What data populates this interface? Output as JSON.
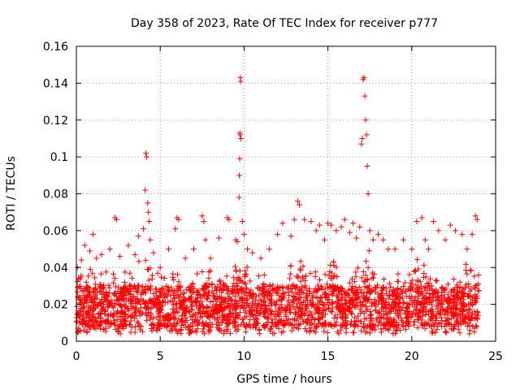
{
  "chart_data": {
    "type": "scatter",
    "title": "Day 358 of 2023, Rate Of TEC Index for receiver p777",
    "xlabel": "GPS time / hours",
    "ylabel": "ROTI / TECUs",
    "xlim": [
      0,
      25
    ],
    "ylim": [
      0,
      0.16
    ],
    "xticks": [
      0,
      5,
      10,
      15,
      20,
      25
    ],
    "xtick_labels": [
      "0",
      "5",
      "10",
      "15",
      "20",
      "25"
    ],
    "yticks": [
      0,
      0.02,
      0.04,
      0.06,
      0.08,
      0.1,
      0.12,
      0.14,
      0.16
    ],
    "ytick_labels": [
      "0",
      "0.02",
      "0.04",
      "0.06",
      "0.08",
      "0.1",
      "0.12",
      "0.14",
      "0.16"
    ],
    "grid": true,
    "marker": "+",
    "color": "#ff0000",
    "series": [
      {
        "name": "ROTI",
        "description_of_bulk": "dense band of points across 0-24 h mostly between 0.005 and 0.035 TECU/s",
        "x": [
          0.3,
          0.5,
          0.8,
          1.0,
          1.2,
          1.5,
          2.0,
          2.3,
          2.4,
          2.6,
          3.1,
          3.5,
          3.7,
          4.0,
          4.1,
          4.15,
          4.2,
          4.25,
          4.3,
          4.35,
          4.4,
          4.6,
          5.0,
          5.5,
          5.9,
          6.0,
          6.1,
          6.5,
          7.0,
          7.5,
          7.6,
          7.7,
          8.0,
          8.5,
          9.0,
          9.1,
          9.5,
          9.6,
          9.7,
          9.72,
          9.74,
          9.75,
          9.76,
          9.78,
          9.8,
          9.82,
          9.9,
          10.0,
          10.2,
          10.5,
          11.0,
          11.5,
          12.0,
          12.3,
          12.8,
          13.0,
          13.2,
          13.3,
          13.6,
          14.0,
          14.3,
          14.5,
          14.8,
          15.0,
          15.2,
          15.5,
          15.8,
          16.0,
          16.3,
          16.5,
          16.7,
          16.9,
          17.0,
          17.05,
          17.1,
          17.15,
          17.2,
          17.25,
          17.3,
          17.35,
          17.4,
          17.5,
          17.7,
          18.0,
          18.3,
          18.6,
          19.0,
          19.5,
          20.0,
          20.3,
          20.6,
          20.8,
          21.0,
          21.3,
          21.6,
          22.0,
          22.3,
          22.6,
          23.0,
          23.3,
          23.6,
          23.8,
          23.9
        ],
        "y": [
          0.044,
          0.052,
          0.049,
          0.058,
          0.045,
          0.047,
          0.05,
          0.067,
          0.066,
          0.046,
          0.052,
          0.047,
          0.057,
          0.061,
          0.082,
          0.102,
          0.1,
          0.075,
          0.07,
          0.065,
          0.055,
          0.048,
          0.04,
          0.05,
          0.061,
          0.067,
          0.066,
          0.045,
          0.05,
          0.068,
          0.065,
          0.055,
          0.045,
          0.056,
          0.067,
          0.066,
          0.055,
          0.054,
          0.078,
          0.09,
          0.099,
          0.113,
          0.112,
          0.143,
          0.141,
          0.11,
          0.065,
          0.058,
          0.05,
          0.048,
          0.045,
          0.05,
          0.058,
          0.064,
          0.057,
          0.066,
          0.076,
          0.074,
          0.066,
          0.065,
          0.06,
          0.063,
          0.055,
          0.064,
          0.063,
          0.06,
          0.062,
          0.066,
          0.059,
          0.064,
          0.056,
          0.062,
          0.107,
          0.11,
          0.142,
          0.143,
          0.133,
          0.12,
          0.112,
          0.095,
          0.08,
          0.06,
          0.055,
          0.058,
          0.055,
          0.05,
          0.05,
          0.055,
          0.05,
          0.065,
          0.067,
          0.055,
          0.05,
          0.065,
          0.06,
          0.055,
          0.063,
          0.06,
          0.058,
          0.05,
          0.058,
          0.068,
          0.066
        ]
      }
    ]
  }
}
